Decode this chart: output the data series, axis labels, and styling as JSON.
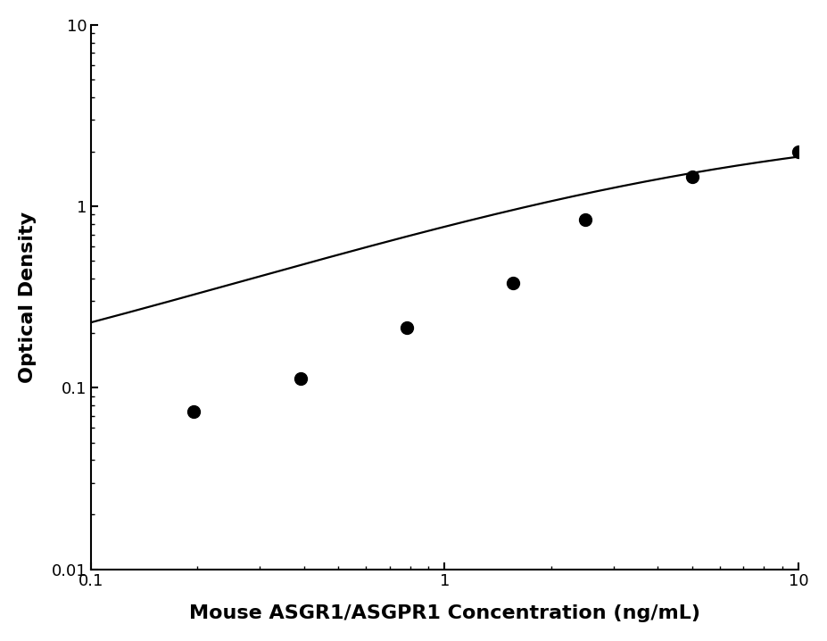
{
  "x_data": [
    0.195,
    0.391,
    0.781,
    1.563,
    2.5,
    5.0,
    10.0
  ],
  "y_data": [
    0.074,
    0.112,
    0.215,
    0.38,
    0.84,
    1.45,
    2.0
  ],
  "xlim": [
    0.1,
    10
  ],
  "ylim": [
    0.01,
    10
  ],
  "xlabel": "Mouse ASGR1/ASGPR1 Concentration (ng/mL)",
  "ylabel": "Optical Density",
  "marker_color": "#000000",
  "line_color": "#000000",
  "marker_size": 10,
  "line_width": 1.6,
  "xlabel_fontsize": 16,
  "ylabel_fontsize": 16,
  "tick_fontsize": 13,
  "background_color": "#ffffff"
}
